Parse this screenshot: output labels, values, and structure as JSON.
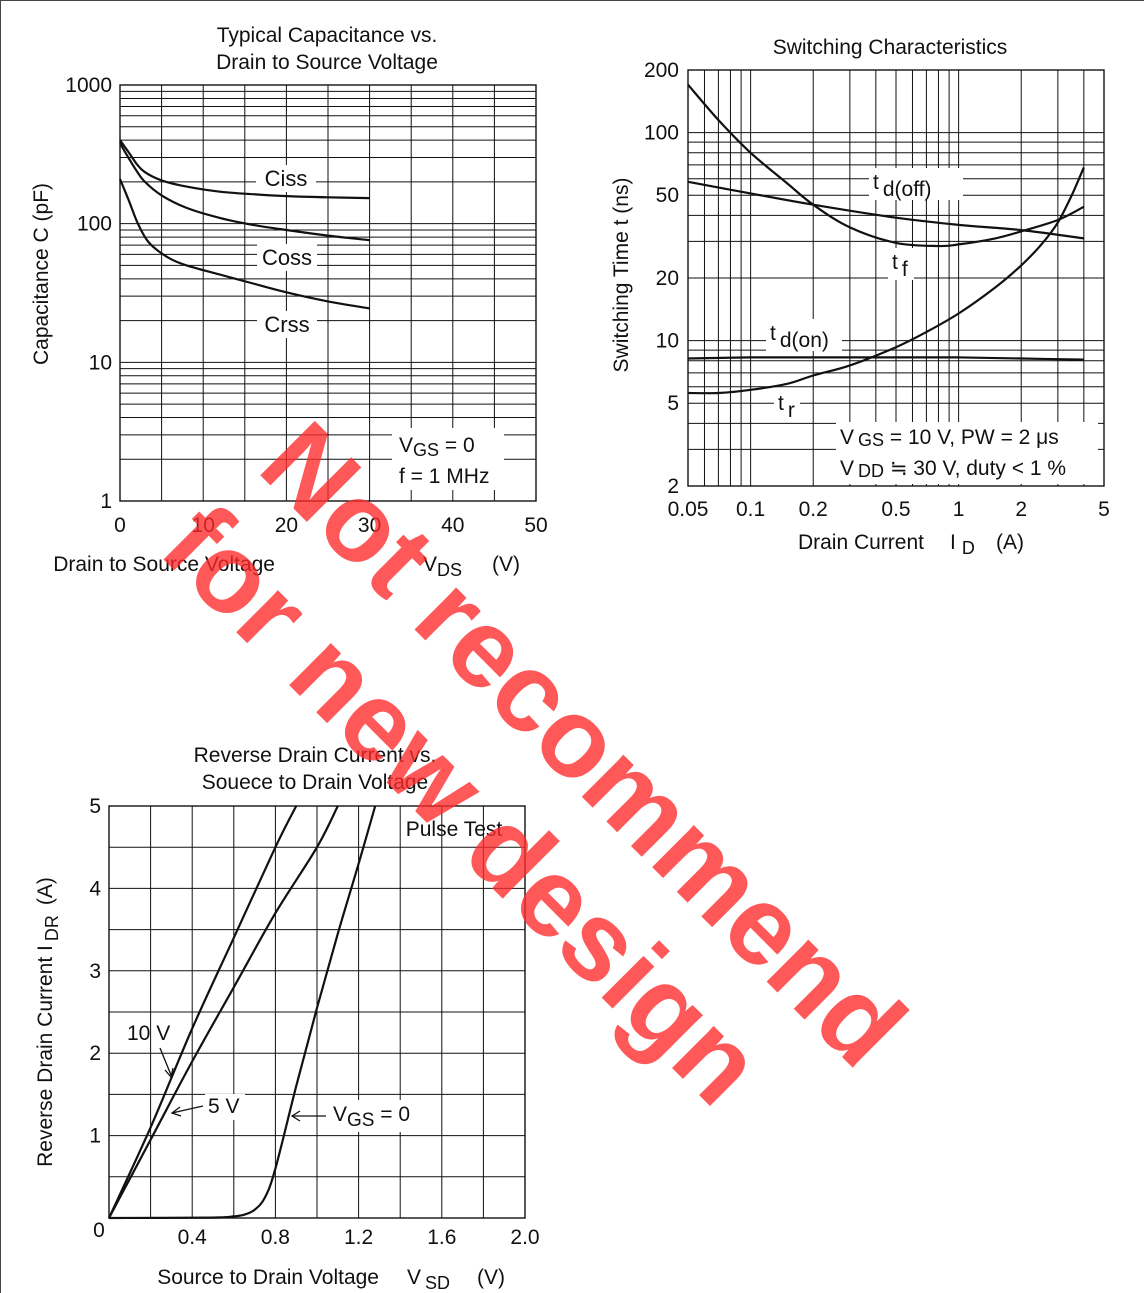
{
  "watermark": {
    "line1": "Not recommend",
    "line2": "for new design",
    "color": "#ff2a2a"
  },
  "chart_data": [
    {
      "type": "line",
      "title_line1": "Typical Capacitance vs.",
      "title_line2": "Drain to Source Voltage",
      "xlabel": "Drain to Source Voltage",
      "xlabel_symbol": "V",
      "xlabel_sub": "DS",
      "xlabel_unit": "(V)",
      "ylabel": "Capacitance  C  (pF)",
      "x_scale": "linear",
      "y_scale": "log",
      "xlim": [
        0,
        50
      ],
      "ylim": [
        1,
        1000
      ],
      "x_ticks": [
        "0",
        "10",
        "20",
        "30",
        "40",
        "50"
      ],
      "y_ticks": [
        "1",
        "10",
        "100",
        "1000"
      ],
      "grid": true,
      "conditions": [
        {
          "pre": "V",
          "sub": "GS",
          "post": " = 0"
        },
        {
          "pre": "f = 1 MHz",
          "sub": "",
          "post": ""
        }
      ],
      "series": [
        {
          "name": "Ciss",
          "x": [
            0,
            1,
            2,
            3,
            5,
            8,
            12,
            16,
            20,
            25,
            30
          ],
          "y": [
            400,
            330,
            270,
            235,
            205,
            185,
            170,
            163,
            158,
            155,
            153
          ]
        },
        {
          "name": "Coss",
          "x": [
            0,
            1,
            2,
            3,
            5,
            8,
            12,
            16,
            20,
            25,
            30
          ],
          "y": [
            380,
            300,
            240,
            200,
            160,
            130,
            110,
            98,
            90,
            82,
            76
          ]
        },
        {
          "name": "Crss",
          "x": [
            0,
            1,
            2,
            3,
            4,
            6,
            8,
            12,
            16,
            20,
            25,
            30
          ],
          "y": [
            210,
            150,
            105,
            80,
            68,
            56,
            50,
            43,
            37,
            32,
            27.5,
            24.5
          ]
        }
      ]
    },
    {
      "type": "line",
      "title": "Switching Characteristics",
      "xlabel": "Drain Current",
      "xlabel_symbol": "I",
      "xlabel_sub": "D",
      "xlabel_unit": "(A)",
      "ylabel": "Switching Time   t  (ns)",
      "x_scale": "log",
      "y_scale": "log",
      "xlim": [
        0.05,
        5
      ],
      "ylim": [
        2,
        200
      ],
      "x_ticks": [
        "0.05",
        "0.1",
        "0.2",
        "0.5",
        "1",
        "2",
        "5"
      ],
      "y_ticks": [
        "2",
        "5",
        "10",
        "20",
        "50",
        "100",
        "200"
      ],
      "grid": true,
      "conditions": [
        {
          "pre": "V",
          "sub": "GS",
          "post": " = 10 V, PW = 2 μs"
        },
        {
          "pre": "V",
          "sub": "DD",
          "post": " ≒ 30 V, duty < 1 %"
        }
      ],
      "series": [
        {
          "name": "t",
          "label_sub": "d(off)",
          "x": [
            0.05,
            0.1,
            0.2,
            0.5,
            1,
            2,
            4
          ],
          "y": [
            58,
            51,
            45,
            39,
            36,
            34,
            31
          ]
        },
        {
          "name": "t",
          "label_sub": "f",
          "x": [
            0.05,
            0.07,
            0.1,
            0.15,
            0.2,
            0.3,
            0.5,
            0.8,
            1,
            1.5,
            2,
            3,
            4
          ],
          "y": [
            170,
            115,
            80,
            57,
            45,
            35,
            29.5,
            28.5,
            29,
            31,
            33.5,
            38,
            44
          ]
        },
        {
          "name": "t",
          "label_sub": "d(on)",
          "x": [
            0.05,
            0.1,
            0.2,
            0.5,
            1,
            2,
            4
          ],
          "y": [
            8.2,
            8.3,
            8.3,
            8.3,
            8.3,
            8.2,
            8.1
          ]
        },
        {
          "name": "t",
          "label_sub": "r",
          "x": [
            0.05,
            0.07,
            0.1,
            0.15,
            0.2,
            0.3,
            0.5,
            0.7,
            1,
            1.5,
            2,
            2.5,
            3,
            3.5,
            4
          ],
          "y": [
            5.6,
            5.6,
            5.8,
            6.2,
            6.8,
            7.6,
            9.3,
            11,
            13.5,
            18,
            23,
            29,
            37,
            50,
            68
          ]
        }
      ]
    },
    {
      "type": "line",
      "title_line1": "Reverse Drain Current vs.",
      "title_line2": "Souece to Drain Voltage",
      "xlabel": "Source to Drain Voltage",
      "xlabel_symbol": "V",
      "xlabel_sub": "SD",
      "xlabel_unit": "(V)",
      "ylabel_pre": "Reverse Drain Current   I",
      "ylabel_sub": "DR",
      "ylabel_unit": "(A)",
      "x_scale": "linear",
      "y_scale": "linear",
      "xlim": [
        0,
        2.0
      ],
      "ylim": [
        0,
        5
      ],
      "x_ticks": [
        "0",
        "0.4",
        "0.8",
        "1.2",
        "1.6",
        "2.0"
      ],
      "y_ticks": [
        "0",
        "1",
        "2",
        "3",
        "4",
        "5"
      ],
      "grid": true,
      "annotation": "Pulse Test",
      "series": [
        {
          "name": "10 V",
          "x": [
            0,
            0.2,
            0.4,
            0.6,
            0.8,
            0.9
          ],
          "y": [
            0,
            1.1,
            2.3,
            3.4,
            4.5,
            5.0
          ]
        },
        {
          "name": "5 V",
          "x": [
            0,
            0.2,
            0.4,
            0.6,
            0.8,
            1.0,
            1.1
          ],
          "y": [
            0,
            0.95,
            1.9,
            2.8,
            3.7,
            4.5,
            5.0
          ]
        },
        {
          "name_pre": "V",
          "name_sub": "GS",
          "name_post": " = 0",
          "x": [
            0,
            0.5,
            0.6,
            0.65,
            0.7,
            0.75,
            0.8,
            0.9,
            1.0,
            1.1,
            1.2,
            1.28
          ],
          "y": [
            0,
            0.005,
            0.02,
            0.04,
            0.1,
            0.25,
            0.6,
            1.6,
            2.55,
            3.45,
            4.3,
            5.0
          ]
        }
      ]
    }
  ]
}
